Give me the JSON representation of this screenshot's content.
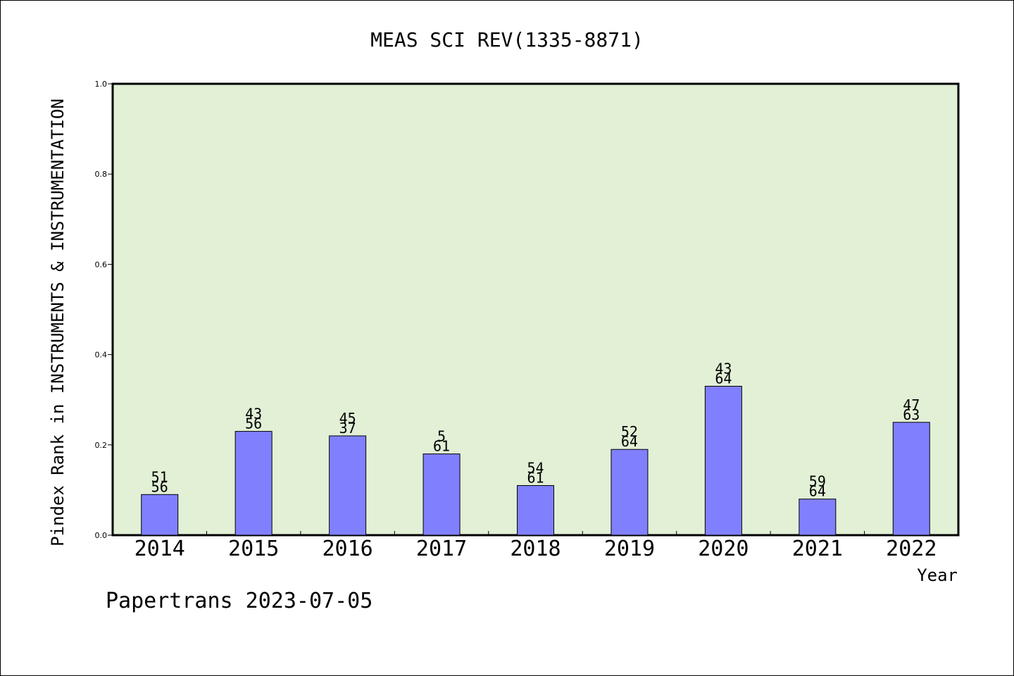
{
  "chart_data": {
    "type": "bar",
    "title": "MEAS SCI REV(1335-8871)",
    "xlabel": "Year",
    "ylabel": "Pindex Rank in INSTRUMENTS & INSTRUMENTATION",
    "ylim": [
      0,
      1.0
    ],
    "yticks": [
      "0.0",
      "0.2",
      "0.4",
      "0.6",
      "0.8",
      "1.0"
    ],
    "categories": [
      "2014",
      "2015",
      "2016",
      "2017",
      "2018",
      "2019",
      "2020",
      "2021",
      "2022"
    ],
    "values": [
      0.09,
      0.23,
      0.22,
      0.18,
      0.11,
      0.19,
      0.33,
      0.08,
      0.25
    ],
    "rank_labels": [
      "51",
      "43",
      "45",
      "5",
      "54",
      "52",
      "43",
      "59",
      "47"
    ],
    "total_labels": [
      "56",
      "56",
      "37",
      "61",
      "61",
      "64",
      "64",
      "64",
      "63"
    ],
    "grid": false,
    "legend": "none"
  },
  "footer": "Papertrans 2023-07-05",
  "colors": {
    "plot_background": "#e2f0d6",
    "bar_fill": "#8080ff",
    "bar_stroke": "#000000",
    "axis": "#000000"
  }
}
